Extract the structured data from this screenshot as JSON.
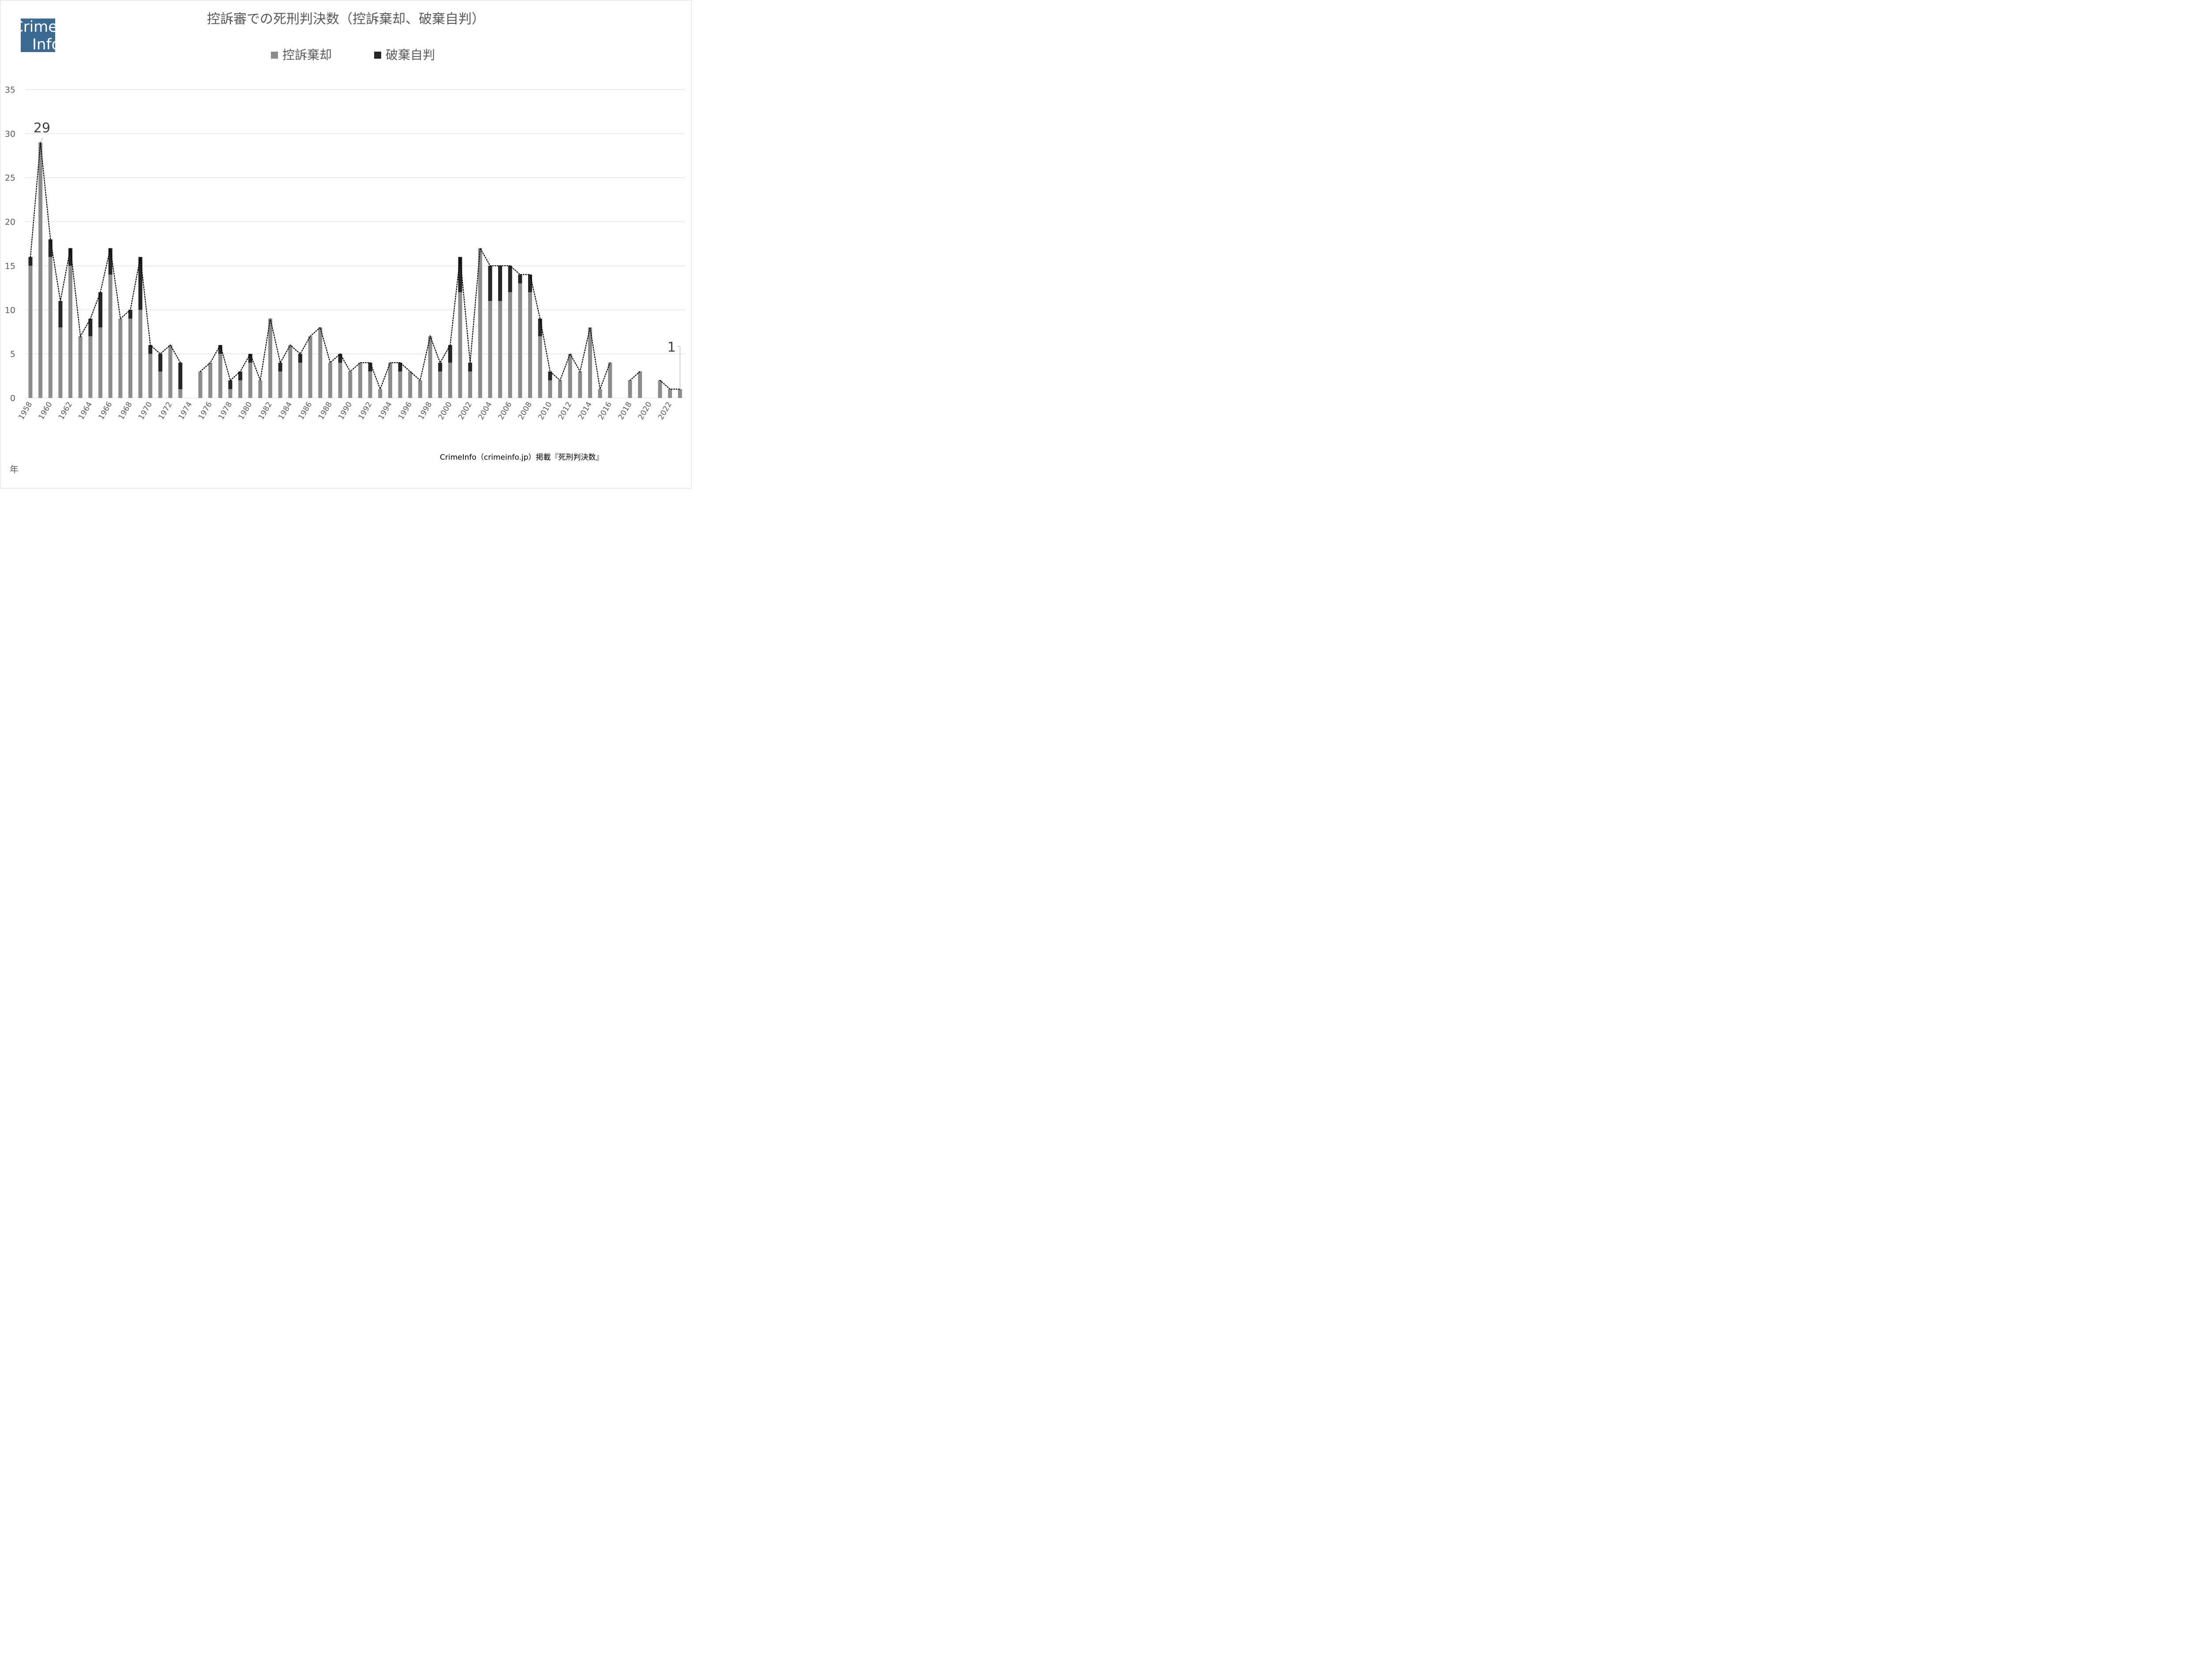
{
  "logo": {
    "line1": "Crime",
    "line2": "Info"
  },
  "chart_data": {
    "type": "bar",
    "stacked": true,
    "title": "控訴審での死刑判決数（控訴棄却、破棄自判）",
    "xlabel": "年",
    "ylabel": "",
    "ylim": [
      0,
      35
    ],
    "yticks": [
      0,
      5,
      10,
      15,
      20,
      25,
      30,
      35
    ],
    "grid": true,
    "legend_position": "top-center",
    "categories": [
      "1958",
      "1959",
      "1960",
      "1961",
      "1962",
      "1963",
      "1964",
      "1965",
      "1966",
      "1967",
      "1968",
      "1969",
      "1970",
      "1971",
      "1972",
      "1973",
      "1974",
      "1975",
      "1976",
      "1977",
      "1978",
      "1979",
      "1980",
      "1981",
      "1982",
      "1983",
      "1984",
      "1985",
      "1986",
      "1987",
      "1988",
      "1989",
      "1990",
      "1991",
      "1992",
      "1993",
      "1994",
      "1995",
      "1996",
      "1997",
      "1998",
      "1999",
      "2000",
      "2001",
      "2002",
      "2003",
      "2004",
      "2005",
      "2006",
      "2007",
      "2008",
      "2009",
      "2010",
      "2011",
      "2012",
      "2013",
      "2014",
      "2015",
      "2016",
      "2017",
      "2018",
      "2019",
      "2020",
      "2021",
      "2022",
      "2023"
    ],
    "tick_labels": [
      "1958",
      "1960",
      "1962",
      "1964",
      "1966",
      "1968",
      "1970",
      "1972",
      "1974",
      "1976",
      "1978",
      "1980",
      "1982",
      "1984",
      "1986",
      "1988",
      "1990",
      "1992",
      "1994",
      "1996",
      "1998",
      "2000",
      "2002",
      "2004",
      "2006",
      "2008",
      "2010",
      "2012",
      "2014",
      "2016",
      "2018",
      "2020",
      "2022"
    ],
    "series": [
      {
        "name": "控訴棄却",
        "color": "#8c8c8c",
        "values": [
          15,
          29,
          16,
          8,
          15,
          7,
          7,
          8,
          14,
          9,
          9,
          10,
          5,
          3,
          6,
          1,
          0,
          3,
          4,
          5,
          1,
          2,
          4,
          2,
          9,
          3,
          6,
          4,
          7,
          8,
          4,
          4,
          3,
          4,
          3,
          1,
          4,
          3,
          3,
          2,
          7,
          3,
          4,
          12,
          3,
          17,
          11,
          11,
          12,
          13,
          12,
          7,
          2,
          2,
          5,
          3,
          8,
          1,
          4,
          0,
          2,
          3,
          0,
          2,
          1,
          1
        ]
      },
      {
        "name": "破棄自判",
        "color": "#262626",
        "values": [
          1,
          0,
          2,
          3,
          2,
          0,
          2,
          4,
          3,
          0,
          1,
          6,
          1,
          2,
          0,
          3,
          0,
          0,
          0,
          1,
          1,
          1,
          1,
          0,
          0,
          1,
          0,
          1,
          0,
          0,
          0,
          1,
          0,
          0,
          1,
          0,
          0,
          1,
          0,
          0,
          0,
          1,
          2,
          4,
          1,
          0,
          4,
          4,
          3,
          1,
          2,
          2,
          1,
          0,
          0,
          0,
          0,
          0,
          0,
          0,
          0,
          0,
          0,
          0,
          0,
          0
        ]
      }
    ],
    "total_line": {
      "style": "dotted",
      "color": "#000000",
      "values": [
        16,
        29,
        18,
        11,
        17,
        7,
        9,
        12,
        17,
        9,
        10,
        16,
        6,
        5,
        6,
        4,
        null,
        3,
        4,
        6,
        2,
        3,
        5,
        2,
        9,
        4,
        6,
        5,
        7,
        8,
        4,
        5,
        3,
        4,
        4,
        1,
        4,
        4,
        3,
        2,
        7,
        4,
        6,
        16,
        4,
        17,
        15,
        15,
        15,
        14,
        14,
        9,
        3,
        2,
        5,
        3,
        8,
        1,
        4,
        null,
        2,
        3,
        null,
        2,
        1,
        1
      ]
    },
    "annotations": [
      {
        "text": "29",
        "category": "1959"
      },
      {
        "text": "1",
        "category": "2023"
      }
    ],
    "source": "CrimeInfo（crimeinfo.jp）掲載『死刑判決数』"
  }
}
